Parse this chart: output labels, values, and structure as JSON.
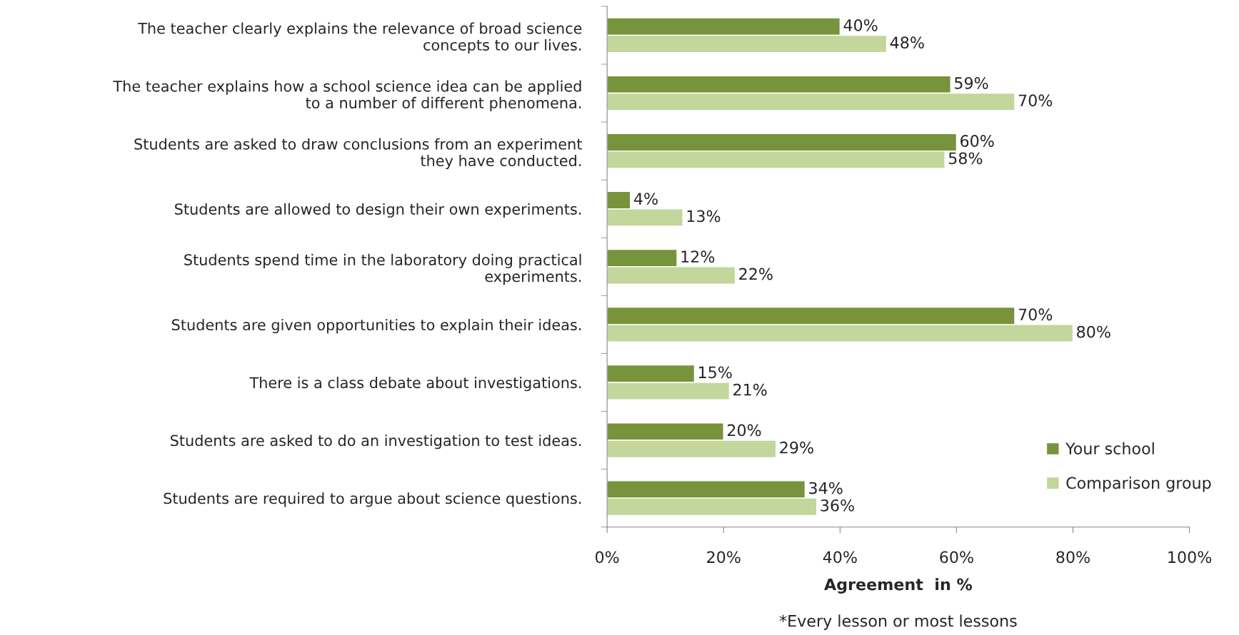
{
  "chart_data": {
    "type": "bar",
    "orientation": "horizontal",
    "categories": [
      "The teacher clearly explains the relevance of broad science\nconcepts to our lives.",
      "The teacher explains how a school science idea can be applied\nto a number of different phenomena.",
      "Students are asked to draw conclusions from an experiment\nthey have conducted.",
      "Students are allowed to design their own experiments.",
      "Students spend time in the laboratory doing practical\nexperiments.",
      "Students are given opportunities to explain their ideas.",
      "There is a class debate about investigations.",
      "Students are asked to do an investigation to test ideas.",
      "Students are required to argue about science questions."
    ],
    "series": [
      {
        "name": "Your school",
        "color": "#77933c",
        "values": [
          40,
          59,
          60,
          4,
          12,
          70,
          15,
          20,
          34
        ],
        "value_labels": [
          "40%",
          "59%",
          "60%",
          "4%",
          "12%",
          "70%",
          "15%",
          "20%",
          "34%"
        ]
      },
      {
        "name": "Comparison group",
        "color": "#c3d69b",
        "values": [
          48,
          70,
          58,
          13,
          22,
          80,
          21,
          29,
          36
        ],
        "value_labels": [
          "48%",
          "70%",
          "58%",
          "13%",
          "22%",
          "80%",
          "21%",
          "29%",
          "36%"
        ]
      }
    ],
    "xlim": [
      0,
      100
    ],
    "xticks": [
      {
        "value": 0,
        "label": "0%"
      },
      {
        "value": 20,
        "label": "20%"
      },
      {
        "value": 40,
        "label": "40%"
      },
      {
        "value": 60,
        "label": "60%"
      },
      {
        "value": 80,
        "label": "80%"
      },
      {
        "value": 100,
        "label": "100%"
      }
    ],
    "xlabel": "Agreement  in %",
    "annotations": [
      "*Every lesson or most lessons"
    ],
    "legend": "bottom right",
    "grid": false
  }
}
